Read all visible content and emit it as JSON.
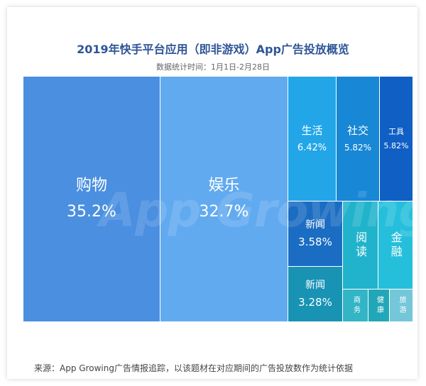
{
  "header": {
    "title": "2019年快手平台应用（即非游戏）App广告投放概览",
    "subtitle": "数据统计时间：1月1日-2月28日"
  },
  "watermark": "App Growing",
  "footer": {
    "source": "来源：App Growing广告情报追踪，以该题材在对应期间的广告投放数作为统计依据"
  },
  "colors": {
    "shopping": "#4a8fe0",
    "entertainment": "#62aaf0",
    "life": "#22a6e8",
    "social": "#1787d6",
    "tools": "#0f5fc4",
    "news1": "#1b6dc3",
    "news2": "#1893b4",
    "reading": "#22b3cc",
    "finance": "#25bfdc",
    "business": "#33b5c6",
    "health": "#22a7b8",
    "travel": "#74c7d8"
  },
  "chart_data": {
    "type": "treemap",
    "title": "2019年快手平台应用（即非游戏）App广告投放概览",
    "subtitle": "数据统计时间：1月1日-2月28日",
    "unit": "%",
    "items": [
      {
        "key": "shopping",
        "label": "购物",
        "value": 35.2,
        "value_text": "35.2%"
      },
      {
        "key": "entertainment",
        "label": "娱乐",
        "value": 32.7,
        "value_text": "32.7%"
      },
      {
        "key": "life",
        "label": "生活",
        "value": 6.42,
        "value_text": "6.42%"
      },
      {
        "key": "social",
        "label": "社交",
        "value": 5.82,
        "value_text": "5.82%"
      },
      {
        "key": "tools",
        "label": "工具",
        "value": 5.82,
        "value_text": "5.82%"
      },
      {
        "key": "news1",
        "label": "新闻",
        "value": 3.58,
        "value_text": "3.58%"
      },
      {
        "key": "news2",
        "label": "新闻",
        "value": 3.28,
        "value_text": "3.28%"
      },
      {
        "key": "reading",
        "label": "阅读",
        "value": null,
        "value_text": ""
      },
      {
        "key": "finance",
        "label": "金融",
        "value": null,
        "value_text": ""
      },
      {
        "key": "business",
        "label": "商务",
        "value": null,
        "value_text": ""
      },
      {
        "key": "health",
        "label": "健康",
        "value": null,
        "value_text": ""
      },
      {
        "key": "travel",
        "label": "旅游",
        "value": null,
        "value_text": ""
      }
    ]
  }
}
